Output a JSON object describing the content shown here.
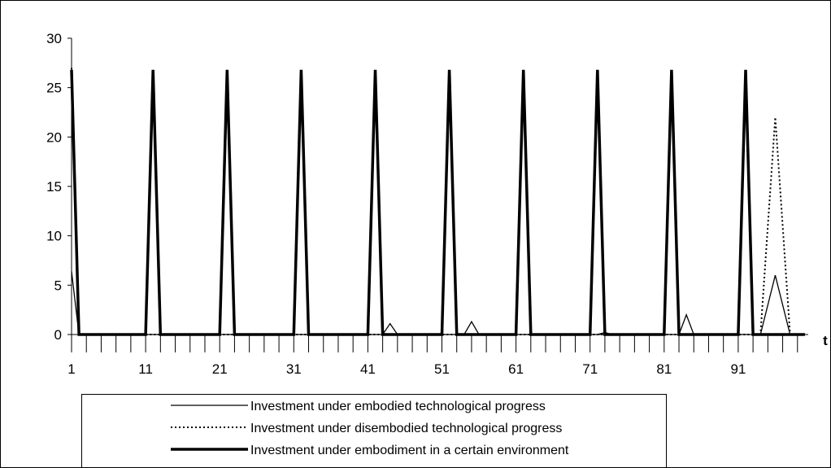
{
  "chart_data": {
    "type": "line",
    "x_label": "t",
    "categories": [
      "1",
      null,
      null,
      null,
      null,
      null,
      null,
      null,
      null,
      null,
      "11",
      null,
      null,
      null,
      null,
      null,
      null,
      null,
      null,
      null,
      "21",
      null,
      null,
      null,
      null,
      null,
      null,
      null,
      null,
      null,
      "31",
      null,
      null,
      null,
      null,
      null,
      null,
      null,
      null,
      null,
      "41",
      null,
      null,
      null,
      null,
      null,
      null,
      null,
      null,
      null,
      "51",
      null,
      null,
      null,
      null,
      null,
      null,
      null,
      null,
      null,
      "61",
      null,
      null,
      null,
      null,
      null,
      null,
      null,
      null,
      null,
      "71",
      null,
      null,
      null,
      null,
      null,
      null,
      null,
      null,
      null,
      "81",
      null,
      null,
      null,
      null,
      null,
      null,
      null,
      null,
      null,
      "91",
      null,
      null,
      null,
      null,
      null,
      null,
      null,
      null,
      null
    ],
    "ylim": [
      0,
      30
    ],
    "yticks": [
      0,
      5,
      10,
      15,
      20,
      25,
      30
    ],
    "series": [
      {
        "name": "Investment under embodied technological progress",
        "color": "#000000",
        "style": "thin",
        "values": [
          6.4,
          0,
          0,
          0,
          0,
          0,
          0,
          0,
          0,
          0,
          0,
          0,
          0,
          0,
          0,
          0,
          0,
          0,
          0,
          0,
          0,
          0,
          0,
          0,
          0,
          0,
          0,
          0,
          0,
          0,
          0,
          0,
          0,
          0,
          0,
          0,
          0,
          0,
          0,
          0,
          0,
          0,
          0,
          1.1,
          0,
          0,
          0,
          0,
          0,
          0,
          0,
          0,
          0,
          0,
          1.3,
          0,
          0,
          0,
          0,
          0,
          0,
          0,
          0,
          0,
          0,
          0,
          0,
          0,
          0,
          0,
          0,
          0,
          0.2,
          0,
          0,
          0,
          0,
          0,
          0,
          0,
          0,
          0,
          0,
          2,
          0,
          0,
          0,
          0,
          0,
          0,
          0,
          0,
          0,
          0,
          3,
          6,
          3,
          0,
          0,
          0
        ]
      },
      {
        "name": "Investment under disembodied technological progress",
        "color": "#000000",
        "style": "dotted",
        "values": [
          27,
          0,
          0,
          0,
          0,
          0,
          0,
          0,
          0,
          0,
          0,
          0,
          0,
          0,
          0,
          0,
          0,
          0,
          0,
          0,
          0,
          0,
          0,
          0,
          0,
          0,
          0,
          0,
          0,
          0,
          0,
          0,
          0,
          0,
          0,
          0,
          0,
          0,
          0,
          0,
          0,
          0,
          0,
          0,
          0,
          0,
          0,
          0,
          0,
          0,
          0,
          0,
          0,
          0,
          0,
          0,
          0,
          0,
          0,
          0,
          0,
          0,
          0,
          0,
          0,
          0,
          0,
          0,
          0,
          0,
          0,
          0,
          0,
          0,
          0,
          0,
          0,
          0,
          0,
          0,
          0,
          0,
          0,
          0,
          0,
          0,
          0,
          0,
          0,
          0,
          0,
          0,
          0,
          0,
          11,
          22,
          11,
          0,
          0,
          0
        ]
      },
      {
        "name": "Investment under embodiment in a certain environment",
        "color": "#000000",
        "style": "thick",
        "values": [
          26.8,
          0,
          0,
          0,
          0,
          0,
          0,
          0,
          0,
          0,
          0,
          26.8,
          0,
          0,
          0,
          0,
          0,
          0,
          0,
          0,
          0,
          26.8,
          0,
          0,
          0,
          0,
          0,
          0,
          0,
          0,
          0,
          26.8,
          0,
          0,
          0,
          0,
          0,
          0,
          0,
          0,
          0,
          26.8,
          0,
          0,
          0,
          0,
          0,
          0,
          0,
          0,
          0,
          26.8,
          0,
          0,
          0,
          0,
          0,
          0,
          0,
          0,
          0,
          26.8,
          0,
          0,
          0,
          0,
          0,
          0,
          0,
          0,
          0,
          26.8,
          0,
          0,
          0,
          0,
          0,
          0,
          0,
          0,
          0,
          26.8,
          0,
          0,
          0,
          0,
          0,
          0,
          0,
          0,
          0,
          26.8,
          0,
          0,
          0,
          0,
          0,
          0,
          0,
          0
        ]
      }
    ]
  }
}
